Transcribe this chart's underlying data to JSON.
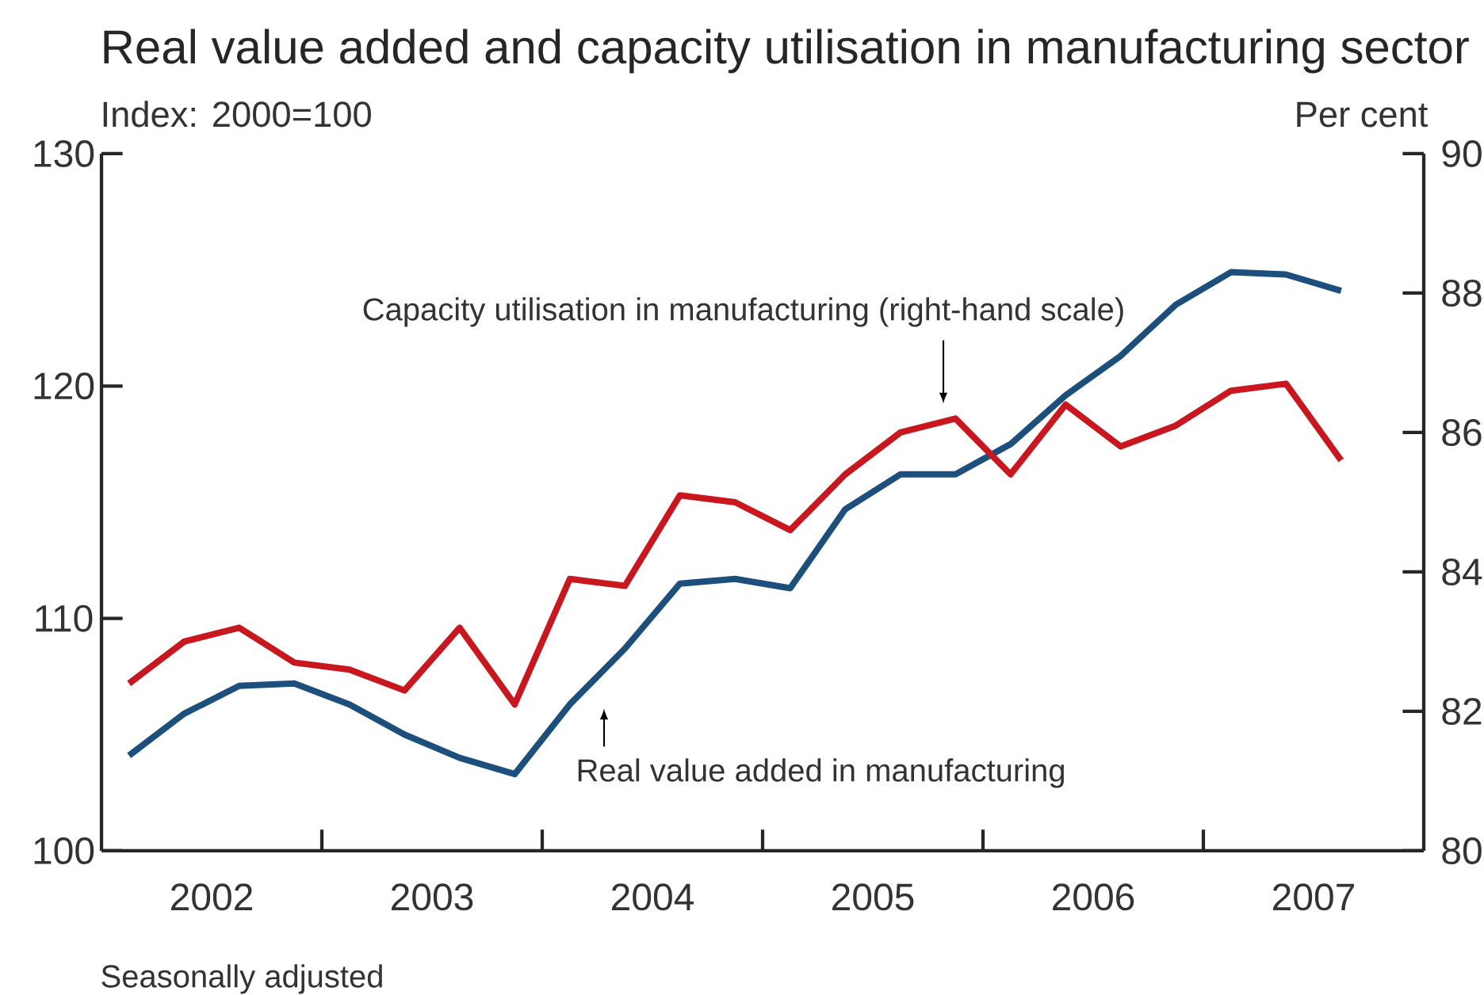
{
  "chart_data": {
    "type": "line",
    "title": "Real value added and capacity utilisation in manufacturing sector",
    "ylabel": "Index: 2000=100",
    "y2label": "Per cent",
    "x": [
      2002.125,
      2002.375,
      2002.625,
      2002.875,
      2003.125,
      2003.375,
      2003.625,
      2003.875,
      2004.125,
      2004.375,
      2004.625,
      2004.875,
      2005.125,
      2005.375,
      2005.625,
      2005.875,
      2006.125,
      2006.375,
      2006.625,
      2006.875,
      2007.125,
      2007.375,
      2007.625
    ],
    "xlim": [
      2002,
      2008
    ],
    "xticks": [
      {
        "value": 2002.5,
        "label": "2002"
      },
      {
        "value": 2003.5,
        "label": "2003"
      },
      {
        "value": 2004.5,
        "label": "2004"
      },
      {
        "value": 2005.5,
        "label": "2005"
      },
      {
        "value": 2006.5,
        "label": "2006"
      },
      {
        "value": 2007.5,
        "label": "2007"
      },
      {
        "value": 2003,
        "label": null
      },
      {
        "value": 2004,
        "label": null
      },
      {
        "value": 2005,
        "label": null
      },
      {
        "value": 2006,
        "label": null
      },
      {
        "value": 2007,
        "label": null
      }
    ],
    "ylim": [
      100,
      130
    ],
    "yticks": [
      100,
      110,
      120,
      130
    ],
    "y2lim": [
      80,
      90
    ],
    "y2ticks": [
      80,
      82,
      84,
      86,
      88,
      90
    ],
    "series": [
      {
        "color": "#1d4f7c",
        "values": [
          104.1,
          105.9,
          107.1,
          107.2,
          106.3,
          105.0,
          104.0,
          103.3,
          106.3,
          108.7,
          111.5,
          111.7,
          111.3,
          114.7,
          116.2,
          116.2,
          117.5,
          119.6,
          121.3,
          123.5,
          124.9,
          124.8,
          124.1
        ]
      },
      {
        "color": "#c8171e",
        "axis": "y2",
        "values": [
          82.4,
          83.0,
          83.2,
          82.7,
          82.6,
          82.3,
          83.2,
          82.1,
          83.9,
          83.8,
          85.1,
          85.0,
          84.6,
          85.4,
          86.0,
          86.2,
          85.4,
          86.4,
          85.8,
          86.1,
          86.6,
          86.7,
          85.6
        ]
      }
    ],
    "annotations": [
      "Capacity utilisation in manufacturing (right-hand scale)",
      "Real value added in manufacturing",
      "Seasonally adjusted"
    ]
  }
}
